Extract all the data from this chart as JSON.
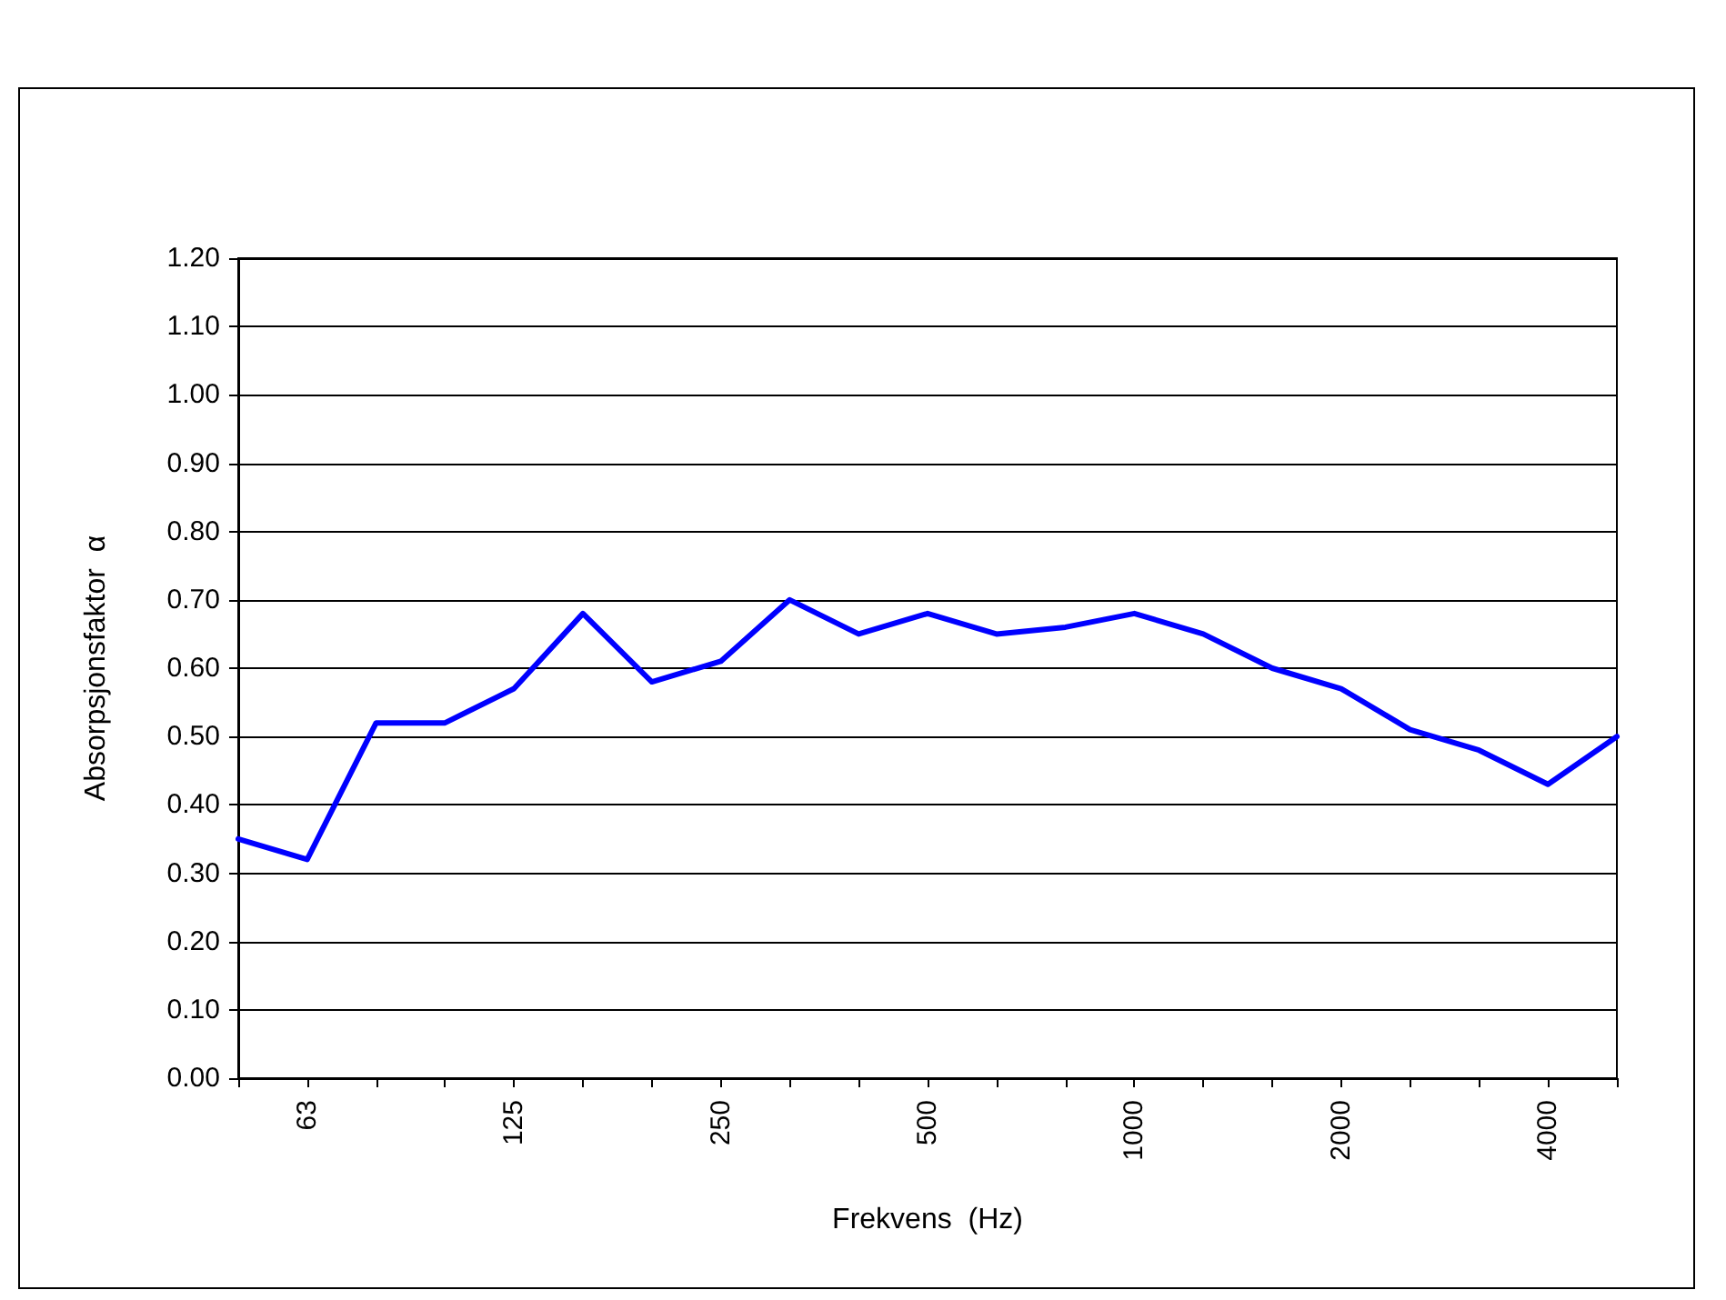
{
  "chart_data": {
    "type": "line",
    "xlabel": "Frekvens  (Hz)",
    "ylabel": "Absorpsjonsfaktor  α",
    "categories": [
      null,
      "63",
      null,
      null,
      "125",
      null,
      null,
      "250",
      null,
      null,
      "500",
      null,
      null,
      "1000",
      null,
      null,
      "2000",
      null,
      null,
      "4000",
      null
    ],
    "series": [
      {
        "color": "#0000ff",
        "values": [
          0.35,
          0.32,
          0.52,
          0.52,
          0.57,
          0.68,
          0.58,
          0.61,
          0.7,
          0.65,
          0.68,
          0.65,
          0.66,
          0.68,
          0.65,
          0.6,
          0.57,
          0.51,
          0.48,
          0.43,
          0.5
        ]
      }
    ],
    "ylim": [
      0,
      1.2
    ],
    "yticks": [
      {
        "value": 0,
        "label": "0.00"
      },
      {
        "value": 0.1,
        "label": "0.10"
      },
      {
        "value": 0.2,
        "label": "0.20"
      },
      {
        "value": 0.3,
        "label": "0.30"
      },
      {
        "value": 0.4,
        "label": "0.40"
      },
      {
        "value": 0.5,
        "label": "0.50"
      },
      {
        "value": 0.6,
        "label": "0.60"
      },
      {
        "value": 0.7,
        "label": "0.70"
      },
      {
        "value": 0.8,
        "label": "0.80"
      },
      {
        "value": 0.9,
        "label": "0.90"
      },
      {
        "value": 1.0,
        "label": "1.00"
      },
      {
        "value": 1.1,
        "label": "1.10"
      },
      {
        "value": 1.2,
        "label": "1.20"
      }
    ],
    "grid": "y",
    "marker": "none",
    "line_style": "solid"
  }
}
